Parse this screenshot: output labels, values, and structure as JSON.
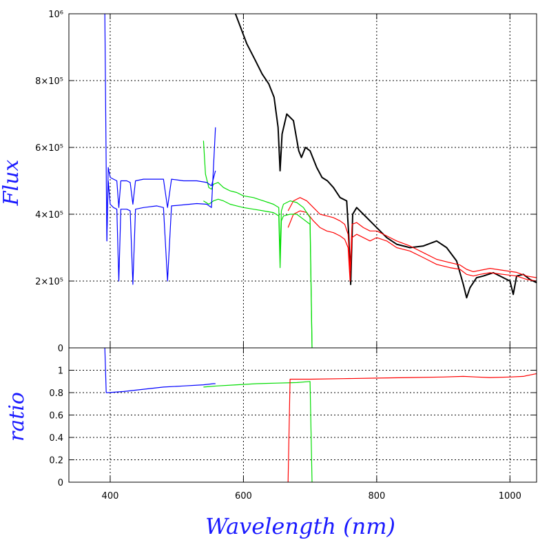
{
  "chart_data": [
    {
      "type": "line",
      "panel": "top",
      "ylabel": "Flux",
      "xlim": [
        338,
        1040
      ],
      "ylim": [
        0,
        1000000
      ],
      "grid": true,
      "yticks": [
        {
          "value": 0,
          "label": "0"
        },
        {
          "value": 200000,
          "label": "2×10⁵"
        },
        {
          "value": 400000,
          "label": "4×10⁵"
        },
        {
          "value": 600000,
          "label": "6×10⁵"
        },
        {
          "value": 800000,
          "label": "8×10⁵"
        },
        {
          "value": 1000000,
          "label": "10⁶"
        }
      ],
      "series": [
        {
          "color": "#000000",
          "x": [
            588,
            605,
            618,
            628,
            638,
            646,
            652,
            655,
            658,
            665,
            675,
            683,
            687,
            693,
            700,
            710,
            718,
            726,
            735,
            745,
            755,
            758,
            761,
            764,
            770,
            780,
            790,
            800,
            815,
            830,
            850,
            870,
            890,
            905,
            920,
            930,
            935,
            940,
            950,
            960,
            975,
            990,
            1000,
            1005,
            1010,
            1020,
            1030,
            1040
          ],
          "y": [
            1000000,
            910000,
            860000,
            820000,
            790000,
            750000,
            660000,
            530000,
            640000,
            700000,
            680000,
            590000,
            570000,
            600000,
            590000,
            540000,
            510000,
            500000,
            480000,
            450000,
            440000,
            340000,
            190000,
            400000,
            420000,
            400000,
            380000,
            360000,
            330000,
            310000,
            300000,
            305000,
            320000,
            300000,
            260000,
            190000,
            150000,
            180000,
            210000,
            215000,
            225000,
            210000,
            200000,
            160000,
            215000,
            220000,
            205000,
            195000
          ]
        },
        {
          "color": "#ff0000",
          "x": [
            667,
            675,
            685,
            695,
            705,
            715,
            725,
            735,
            745,
            752,
            757,
            760,
            763,
            770,
            780,
            790,
            800,
            815,
            830,
            850,
            870,
            890,
            910,
            925,
            935,
            945,
            955,
            970,
            990,
            1010,
            1025,
            1040
          ],
          "y": [
            360000,
            400000,
            410000,
            405000,
            380000,
            360000,
            350000,
            345000,
            335000,
            325000,
            300000,
            200000,
            330000,
            340000,
            330000,
            320000,
            330000,
            320000,
            300000,
            290000,
            270000,
            250000,
            240000,
            235000,
            220000,
            215000,
            220000,
            225000,
            220000,
            215000,
            205000,
            200000
          ]
        },
        {
          "color": "#ff0000",
          "x": [
            667,
            675,
            685,
            695,
            705,
            715,
            725,
            735,
            745,
            752,
            757,
            760,
            763,
            770,
            780,
            790,
            800,
            815,
            830,
            850,
            870,
            890,
            910,
            925,
            935,
            945,
            955,
            970,
            990,
            1010,
            1025,
            1040
          ],
          "y": [
            410000,
            440000,
            450000,
            440000,
            420000,
            400000,
            395000,
            390000,
            380000,
            370000,
            340000,
            230000,
            370000,
            375000,
            360000,
            350000,
            350000,
            335000,
            320000,
            305000,
            285000,
            265000,
            255000,
            248000,
            235000,
            228000,
            232000,
            238000,
            232000,
            226000,
            215000,
            210000
          ]
        },
        {
          "color": "#00dd00",
          "x": [
            540,
            548,
            555,
            562,
            570,
            580,
            590,
            600,
            615,
            630,
            645,
            653,
            655,
            657,
            660,
            670,
            680,
            690,
            700,
            703
          ],
          "y": [
            440000,
            430000,
            440000,
            445000,
            440000,
            430000,
            425000,
            420000,
            415000,
            410000,
            405000,
            395000,
            240000,
            380000,
            395000,
            400000,
            400000,
            385000,
            370000,
            0
          ]
        },
        {
          "color": "#00dd00",
          "x": [
            540,
            543,
            548,
            552,
            555,
            562,
            570,
            580,
            590,
            600,
            615,
            630,
            645,
            653,
            655,
            657,
            660,
            670,
            680,
            690,
            700,
            703
          ],
          "y": [
            620000,
            520000,
            480000,
            475000,
            490000,
            495000,
            480000,
            470000,
            465000,
            455000,
            450000,
            440000,
            430000,
            420000,
            280000,
            410000,
            430000,
            440000,
            435000,
            420000,
            390000,
            0
          ]
        },
        {
          "color": "#0000ff",
          "x": [
            392,
            395,
            397,
            400,
            405,
            410,
            413,
            416,
            425,
            430,
            434,
            438,
            450,
            470,
            480,
            486,
            492,
            510,
            530,
            545,
            552,
            558
          ],
          "y": [
            1000000,
            320000,
            500000,
            430000,
            420000,
            415000,
            200000,
            415000,
            415000,
            410000,
            190000,
            415000,
            420000,
            425000,
            420000,
            200000,
            425000,
            428000,
            432000,
            430000,
            420000,
            660000
          ]
        },
        {
          "color": "#0000ff",
          "x": [
            395,
            397,
            400,
            405,
            410,
            413,
            416,
            425,
            430,
            434,
            438,
            450,
            470,
            480,
            486,
            492,
            510,
            530,
            545,
            552,
            558
          ],
          "y": [
            320000,
            540000,
            510000,
            505000,
            500000,
            420000,
            500000,
            500000,
            495000,
            430000,
            500000,
            505000,
            505000,
            505000,
            420000,
            505000,
            500000,
            500000,
            495000,
            485000,
            530000
          ]
        }
      ]
    },
    {
      "type": "line",
      "panel": "bottom",
      "xlabel": "Wavelength (nm)",
      "ylabel": "ratio",
      "xlim": [
        338,
        1040
      ],
      "ylim": [
        0,
        1.2
      ],
      "grid": true,
      "xticks": [
        {
          "value": 400,
          "label": "400"
        },
        {
          "value": 600,
          "label": "600"
        },
        {
          "value": 800,
          "label": "800"
        },
        {
          "value": 1000,
          "label": "1000"
        }
      ],
      "yticks": [
        {
          "value": 0,
          "label": "0"
        },
        {
          "value": 0.2,
          "label": "0.2"
        },
        {
          "value": 0.4,
          "label": "0.4"
        },
        {
          "value": 0.6,
          "label": "0.6"
        },
        {
          "value": 0.8,
          "label": "0.8"
        },
        {
          "value": 1.0,
          "label": "1"
        }
      ],
      "series": [
        {
          "color": "#0000ff",
          "x": [
            392,
            394,
            397,
            420,
            450,
            480,
            510,
            540,
            555,
            558
          ],
          "y": [
            1.2,
            0.8,
            0.8,
            0.81,
            0.83,
            0.85,
            0.86,
            0.87,
            0.88,
            0.88
          ]
        },
        {
          "color": "#00dd00",
          "x": [
            540,
            560,
            590,
            620,
            650,
            680,
            700,
            703
          ],
          "y": [
            0.85,
            0.86,
            0.87,
            0.88,
            0.885,
            0.89,
            0.9,
            0
          ]
        },
        {
          "color": "#ff0000",
          "x": [
            667,
            670,
            700,
            750,
            800,
            850,
            900,
            930,
            950,
            970,
            1000,
            1020,
            1040
          ],
          "y": [
            0,
            0.92,
            0.92,
            0.925,
            0.93,
            0.935,
            0.94,
            0.945,
            0.94,
            0.935,
            0.94,
            0.945,
            0.97
          ]
        }
      ]
    }
  ]
}
